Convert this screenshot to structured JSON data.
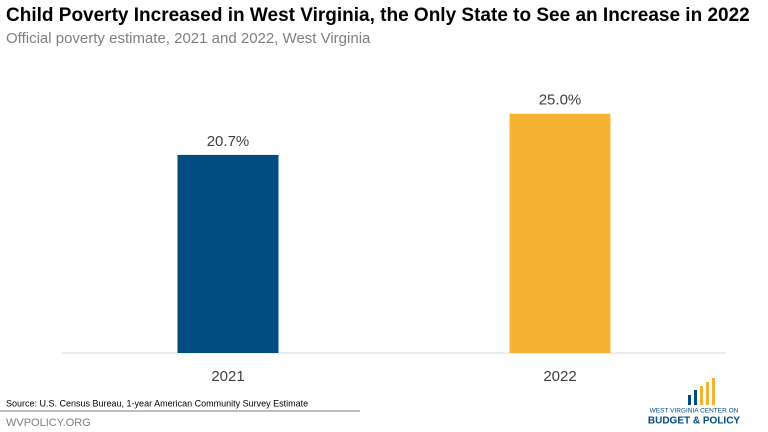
{
  "chart_data": {
    "type": "bar",
    "title": "Child Poverty Increased in West Virginia, the Only State to See an Increase in 2022",
    "subtitle": "Official poverty estimate, 2021 and 2022, West Virginia",
    "categories": [
      "2021",
      "2022"
    ],
    "values": [
      20.7,
      25.0
    ],
    "value_labels": [
      "20.7%",
      "25.0%"
    ],
    "colors": [
      "#004b7f",
      "#f4b333"
    ],
    "source": "Source: U.S. Census Bureau, 1-year American Community Survey Estimate"
  },
  "footer": "WVPOLICY.ORG",
  "logo": {
    "line1": "WEST VIRGINIA CENTER ON",
    "line2": "BUDGET & POLICY"
  }
}
